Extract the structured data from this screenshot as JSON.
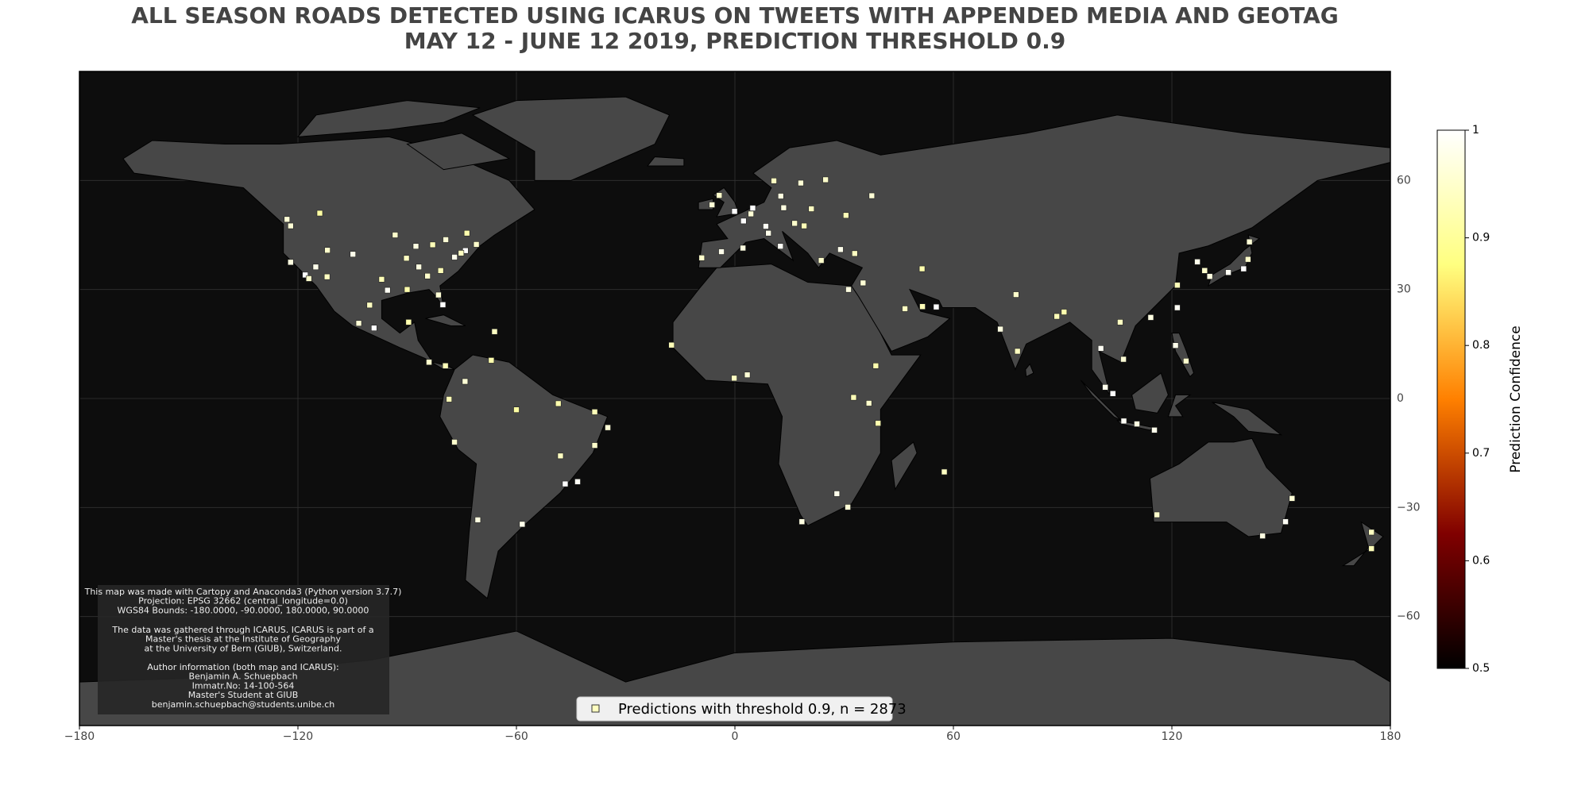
{
  "chart_data": {
    "type": "scatter",
    "title": "ALL SEASON ROADS DETECTED USING ICARUS ON TWEETS WITH APPENDED MEDIA AND GEOTAG",
    "subtitle": "MAY 12 - JUNE 12 2019, PREDICTION THRESHOLD 0.9",
    "xlim": [
      -180,
      180
    ],
    "ylim": [
      -90,
      90
    ],
    "xticks": [
      {
        "value": -180,
        "label": "−180"
      },
      {
        "value": -120,
        "label": "−120"
      },
      {
        "value": -60,
        "label": "−60"
      },
      0,
      60,
      120,
      180
    ],
    "yticks": [
      {
        "value": -60,
        "label": "−60"
      },
      {
        "value": -30,
        "label": "−30"
      },
      0,
      30,
      60
    ],
    "grid": true,
    "colorbar_label": "Prediction Confidence",
    "clim": [
      0.5,
      1.0
    ],
    "cticks": [
      0.5,
      0.6,
      0.7,
      0.8,
      0.9,
      1.0
    ],
    "colormap": [
      "#000000",
      "#800000",
      "#ff8000",
      "#ffff80",
      "#ffffff"
    ],
    "legend": "Predictions with threshold 0.9, n = 2873",
    "legend_position": "lower center",
    "note": [
      [
        "This map was made with Cartopy and Anaconda3 (Python version 3.7.7)",
        "Projection: EPSG 32662 (central_longitude=0.0)",
        "WGS84 Bounds: -180.0000, -90.0000, 180.0000, 90.0000"
      ],
      [
        "The data was gathered through ICARUS. ICARUS is part of a",
        "Master's thesis at the Institute of Geography",
        "at the University of Bern (GIUB), Switzerland."
      ],
      [
        "Author information (both map and ICARUS):",
        "Benjamin A. Schuepbach",
        "Immatr.No: 14-100-564",
        "Master's Student at GIUB",
        "benjamin.schuepbach@students.unibe.ch"
      ]
    ],
    "x": [
      -122,
      -118,
      -117,
      -122,
      -112,
      -104.9,
      -97,
      -95.4,
      -90,
      -87.6,
      -84.4,
      -80.2,
      -81.4,
      -77,
      -74,
      -71,
      -75.2,
      -83,
      -79.4,
      -73.6,
      -93.3,
      -90.2,
      -86.8,
      -80.8,
      -111.9,
      -115.1,
      -123,
      -114,
      -99.1,
      -103.3,
      -100.3,
      -89.6,
      -84,
      -79.5,
      -66,
      -74.1,
      -66.9,
      -78.5,
      -77,
      -70.6,
      -58.4,
      -46.6,
      -43.2,
      -47.9,
      -38.5,
      -34.9,
      -38.5,
      -48.5,
      -60,
      -0.1,
      2.35,
      -3.7,
      2.2,
      -9.1,
      12.5,
      9.2,
      13.4,
      4.9,
      4.4,
      8.5,
      16.4,
      21,
      19,
      18.1,
      24.9,
      10.7,
      12.6,
      37.6,
      30.5,
      23.7,
      29,
      32.9,
      -6.3,
      -4.3,
      35.2,
      31.2,
      55.3,
      46.7,
      51.5,
      51.4,
      72.9,
      77.2,
      77.6,
      88.4,
      90.4,
      100.5,
      101.7,
      103.8,
      106.8,
      110.4,
      115.2,
      106.7,
      105.8,
      121,
      123.9,
      114.2,
      121.5,
      121.5,
      127,
      129,
      139.7,
      135.5,
      130.4,
      141.3,
      140.9,
      -17.4,
      3.4,
      -0.2,
      36.8,
      39.3,
      28,
      18.4,
      31,
      32.6,
      38.7,
      57.5,
      151.2,
      144.9,
      153,
      115.9,
      174.8,
      174.8
    ],
    "y": [
      37.5,
      34,
      33,
      47.5,
      33.5,
      39.7,
      32.8,
      29.8,
      30,
      41.9,
      33.7,
      25.8,
      28.5,
      38.9,
      40.7,
      42.4,
      40,
      42.3,
      43.7,
      45.5,
      45,
      38.6,
      36.2,
      35.2,
      40.8,
      36.2,
      49.3,
      51,
      19.4,
      20.7,
      25.7,
      21,
      10,
      9,
      18.4,
      4.7,
      10.5,
      -0.2,
      -12,
      -33.4,
      -34.6,
      -23.5,
      -22.9,
      -15.8,
      -12.9,
      -8,
      -3.7,
      -1.4,
      -3.1,
      51.5,
      48.85,
      40.4,
      41.4,
      38.7,
      41.9,
      45.5,
      52.5,
      52.4,
      50.8,
      47.4,
      48.2,
      52.2,
      47.5,
      59.3,
      60.2,
      59.9,
      55.7,
      55.8,
      50.4,
      38,
      41,
      39.9,
      53.3,
      55.9,
      31.8,
      30,
      25.2,
      24.7,
      25.3,
      35.7,
      19.1,
      28.6,
      13,
      22.6,
      23.8,
      13.8,
      3.1,
      1.35,
      -6.2,
      -7,
      -8.7,
      10.8,
      21,
      14.6,
      10.3,
      22.3,
      25,
      31.2,
      37.6,
      35.2,
      35.7,
      34.7,
      33.6,
      43.1,
      38.3,
      14.7,
      6.5,
      5.6,
      -1.3,
      -6.8,
      -26.2,
      -33.9,
      -29.9,
      0.3,
      9,
      -20.2,
      -33.9,
      -37.8,
      -27.5,
      -32,
      -36.8,
      -41.3
    ],
    "values": [
      0.97,
      1.0,
      0.95,
      0.96,
      0.94,
      0.98,
      0.93,
      0.99,
      0.92,
      0.97,
      0.95,
      1.0,
      0.96,
      0.98,
      1.0,
      0.95,
      0.94,
      0.93,
      0.96,
      0.92,
      0.95,
      0.94,
      0.97,
      0.93,
      0.95,
      0.98,
      0.96,
      0.91,
      1.0,
      0.96,
      0.94,
      0.92,
      0.95,
      0.93,
      0.94,
      0.96,
      0.92,
      0.93,
      0.95,
      0.97,
      0.98,
      1.0,
      0.99,
      0.94,
      0.95,
      0.96,
      0.93,
      0.92,
      0.91,
      1.0,
      1.0,
      0.98,
      0.97,
      0.95,
      0.99,
      0.98,
      0.97,
      1.0,
      0.96,
      0.99,
      0.95,
      0.94,
      0.93,
      0.96,
      0.95,
      0.94,
      0.97,
      0.96,
      0.93,
      0.95,
      0.98,
      0.94,
      0.96,
      0.95,
      0.96,
      0.97,
      1.0,
      0.94,
      0.93,
      0.92,
      0.97,
      0.95,
      0.94,
      0.93,
      0.92,
      0.99,
      0.98,
      1.0,
      0.99,
      0.97,
      0.98,
      0.96,
      0.94,
      0.98,
      0.95,
      0.97,
      0.99,
      0.93,
      0.98,
      0.95,
      1.0,
      0.99,
      0.97,
      0.96,
      0.95,
      0.93,
      0.96,
      0.94,
      0.95,
      0.92,
      0.98,
      0.97,
      0.96,
      0.93,
      0.92,
      0.94,
      0.99,
      0.97,
      0.96,
      0.95,
      0.94,
      0.93
    ]
  }
}
